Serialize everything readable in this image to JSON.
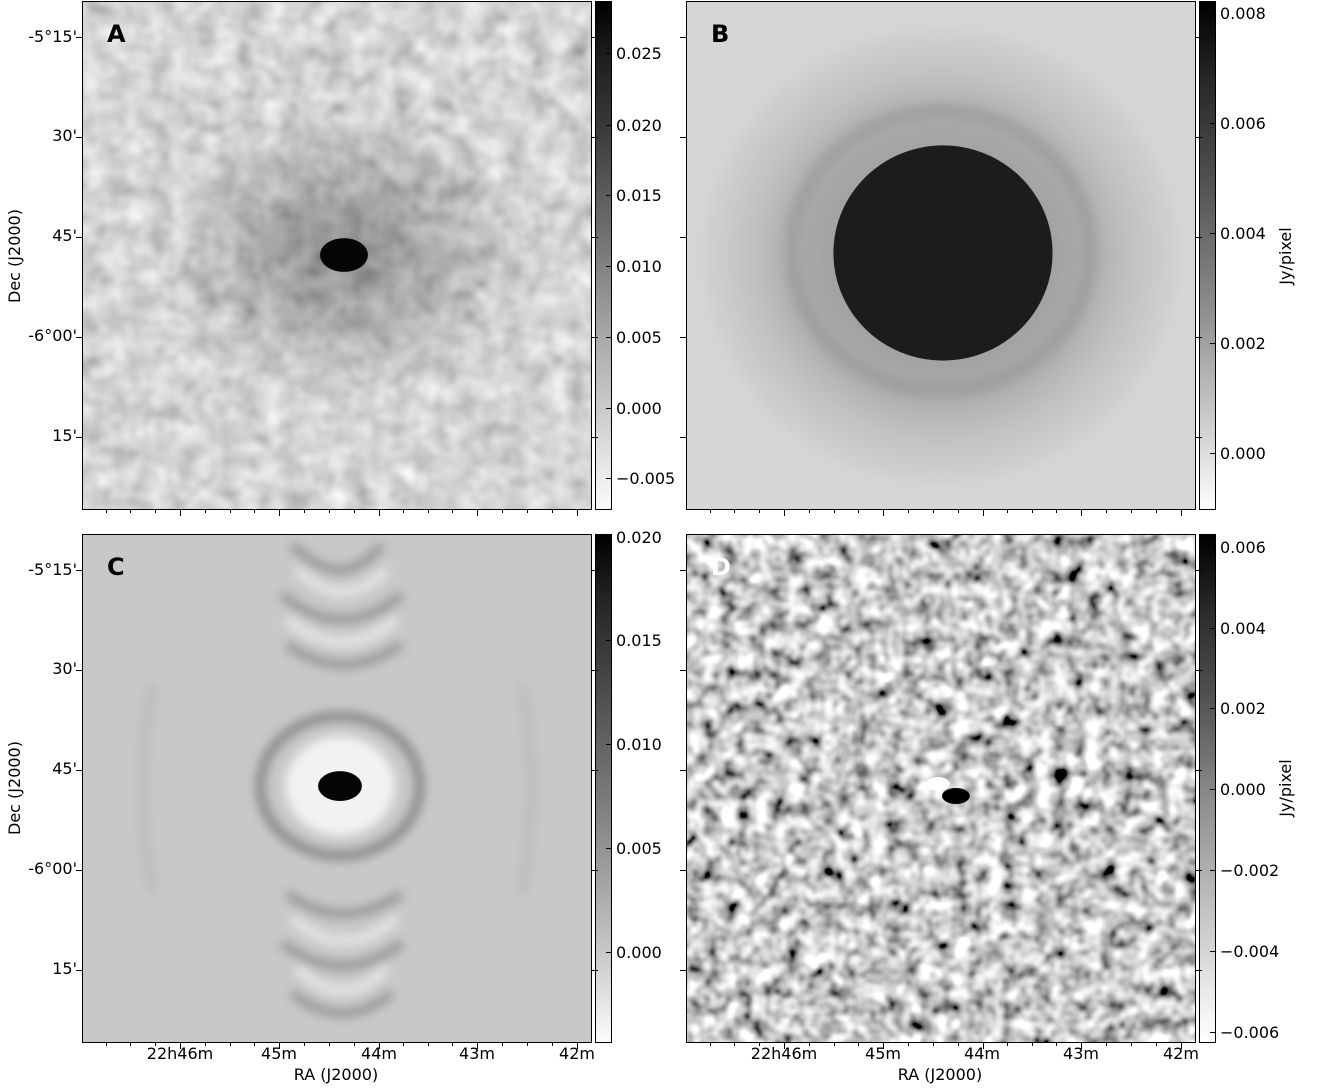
{
  "panels": {
    "a": {
      "label": "A"
    },
    "b": {
      "label": "B"
    },
    "c": {
      "label": "C"
    },
    "d": {
      "label": "D"
    }
  },
  "dec_ticks": [
    "-5°15'",
    "30'",
    "45'",
    "-6°00'",
    "15'"
  ],
  "ra_ticks": [
    "22h46m",
    "45m",
    "44m",
    "43m",
    "42m"
  ],
  "axis_titles": {
    "dec": "Dec (J2000)",
    "ra": "RA (J2000)",
    "jy": "Jy/pixel"
  },
  "colorbars": {
    "a": [
      "0.025",
      "0.020",
      "0.015",
      "0.010",
      "0.005",
      "0.000",
      "−0.005"
    ],
    "b": [
      "0.008",
      "0.006",
      "0.004",
      "0.002",
      "0.000"
    ],
    "c": [
      "0.020",
      "0.015",
      "0.010",
      "0.005",
      "0.000"
    ],
    "d": [
      "0.006",
      "0.004",
      "0.002",
      "0.000",
      "−0.002",
      "−0.004",
      "−0.006"
    ]
  }
}
